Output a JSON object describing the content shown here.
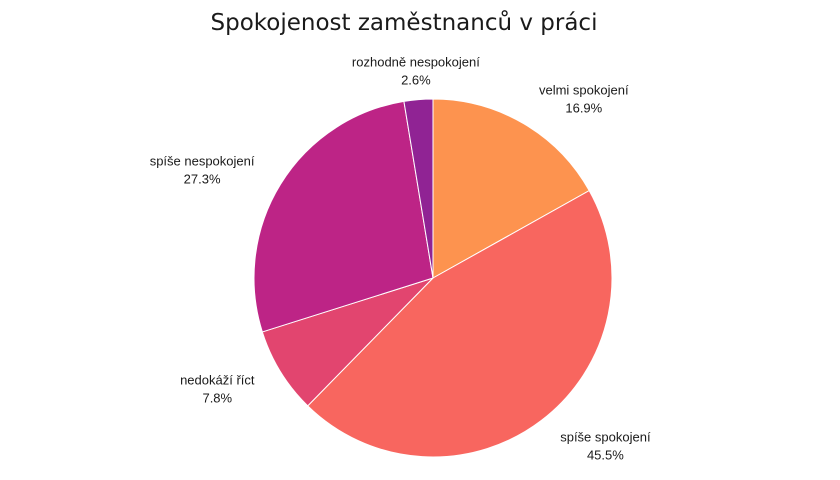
{
  "chart_data": {
    "type": "pie",
    "title": "Spokojenost zaměstnanců v práci",
    "categories": [
      "velmi spokojení",
      "spíše spokojení",
      "nedokáží říct",
      "spíše nespokojení",
      "rozhodně nespokojení"
    ],
    "values": [
      16.9,
      45.5,
      7.8,
      27.3,
      2.6
    ],
    "value_labels": [
      "16.9%",
      "45.5%",
      "7.8%",
      "27.3%",
      "2.6%"
    ],
    "colors": [
      "#fd934f",
      "#f8665f",
      "#e2456f",
      "#bd2486",
      "#902394"
    ],
    "start_angle": "top",
    "direction": "clockwise",
    "legend": "none"
  }
}
